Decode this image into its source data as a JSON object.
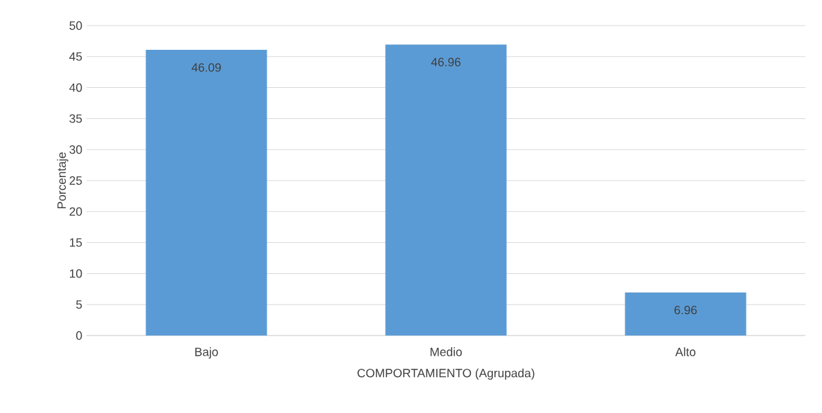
{
  "chart_data": {
    "type": "bar",
    "xlabel": "COMPORTAMIENTO (Agrupada)",
    "ylabel": "Porcentaje",
    "categories": [
      "Bajo",
      "Medio",
      "Alto"
    ],
    "values": [
      46.09,
      46.96,
      6.96
    ],
    "color": "#5b9bd5",
    "ylim": [
      0,
      50
    ],
    "yticks": [
      0,
      5,
      10,
      15,
      20,
      25,
      30,
      35,
      40,
      45,
      50
    ],
    "grid": "y",
    "data_labels": true
  }
}
